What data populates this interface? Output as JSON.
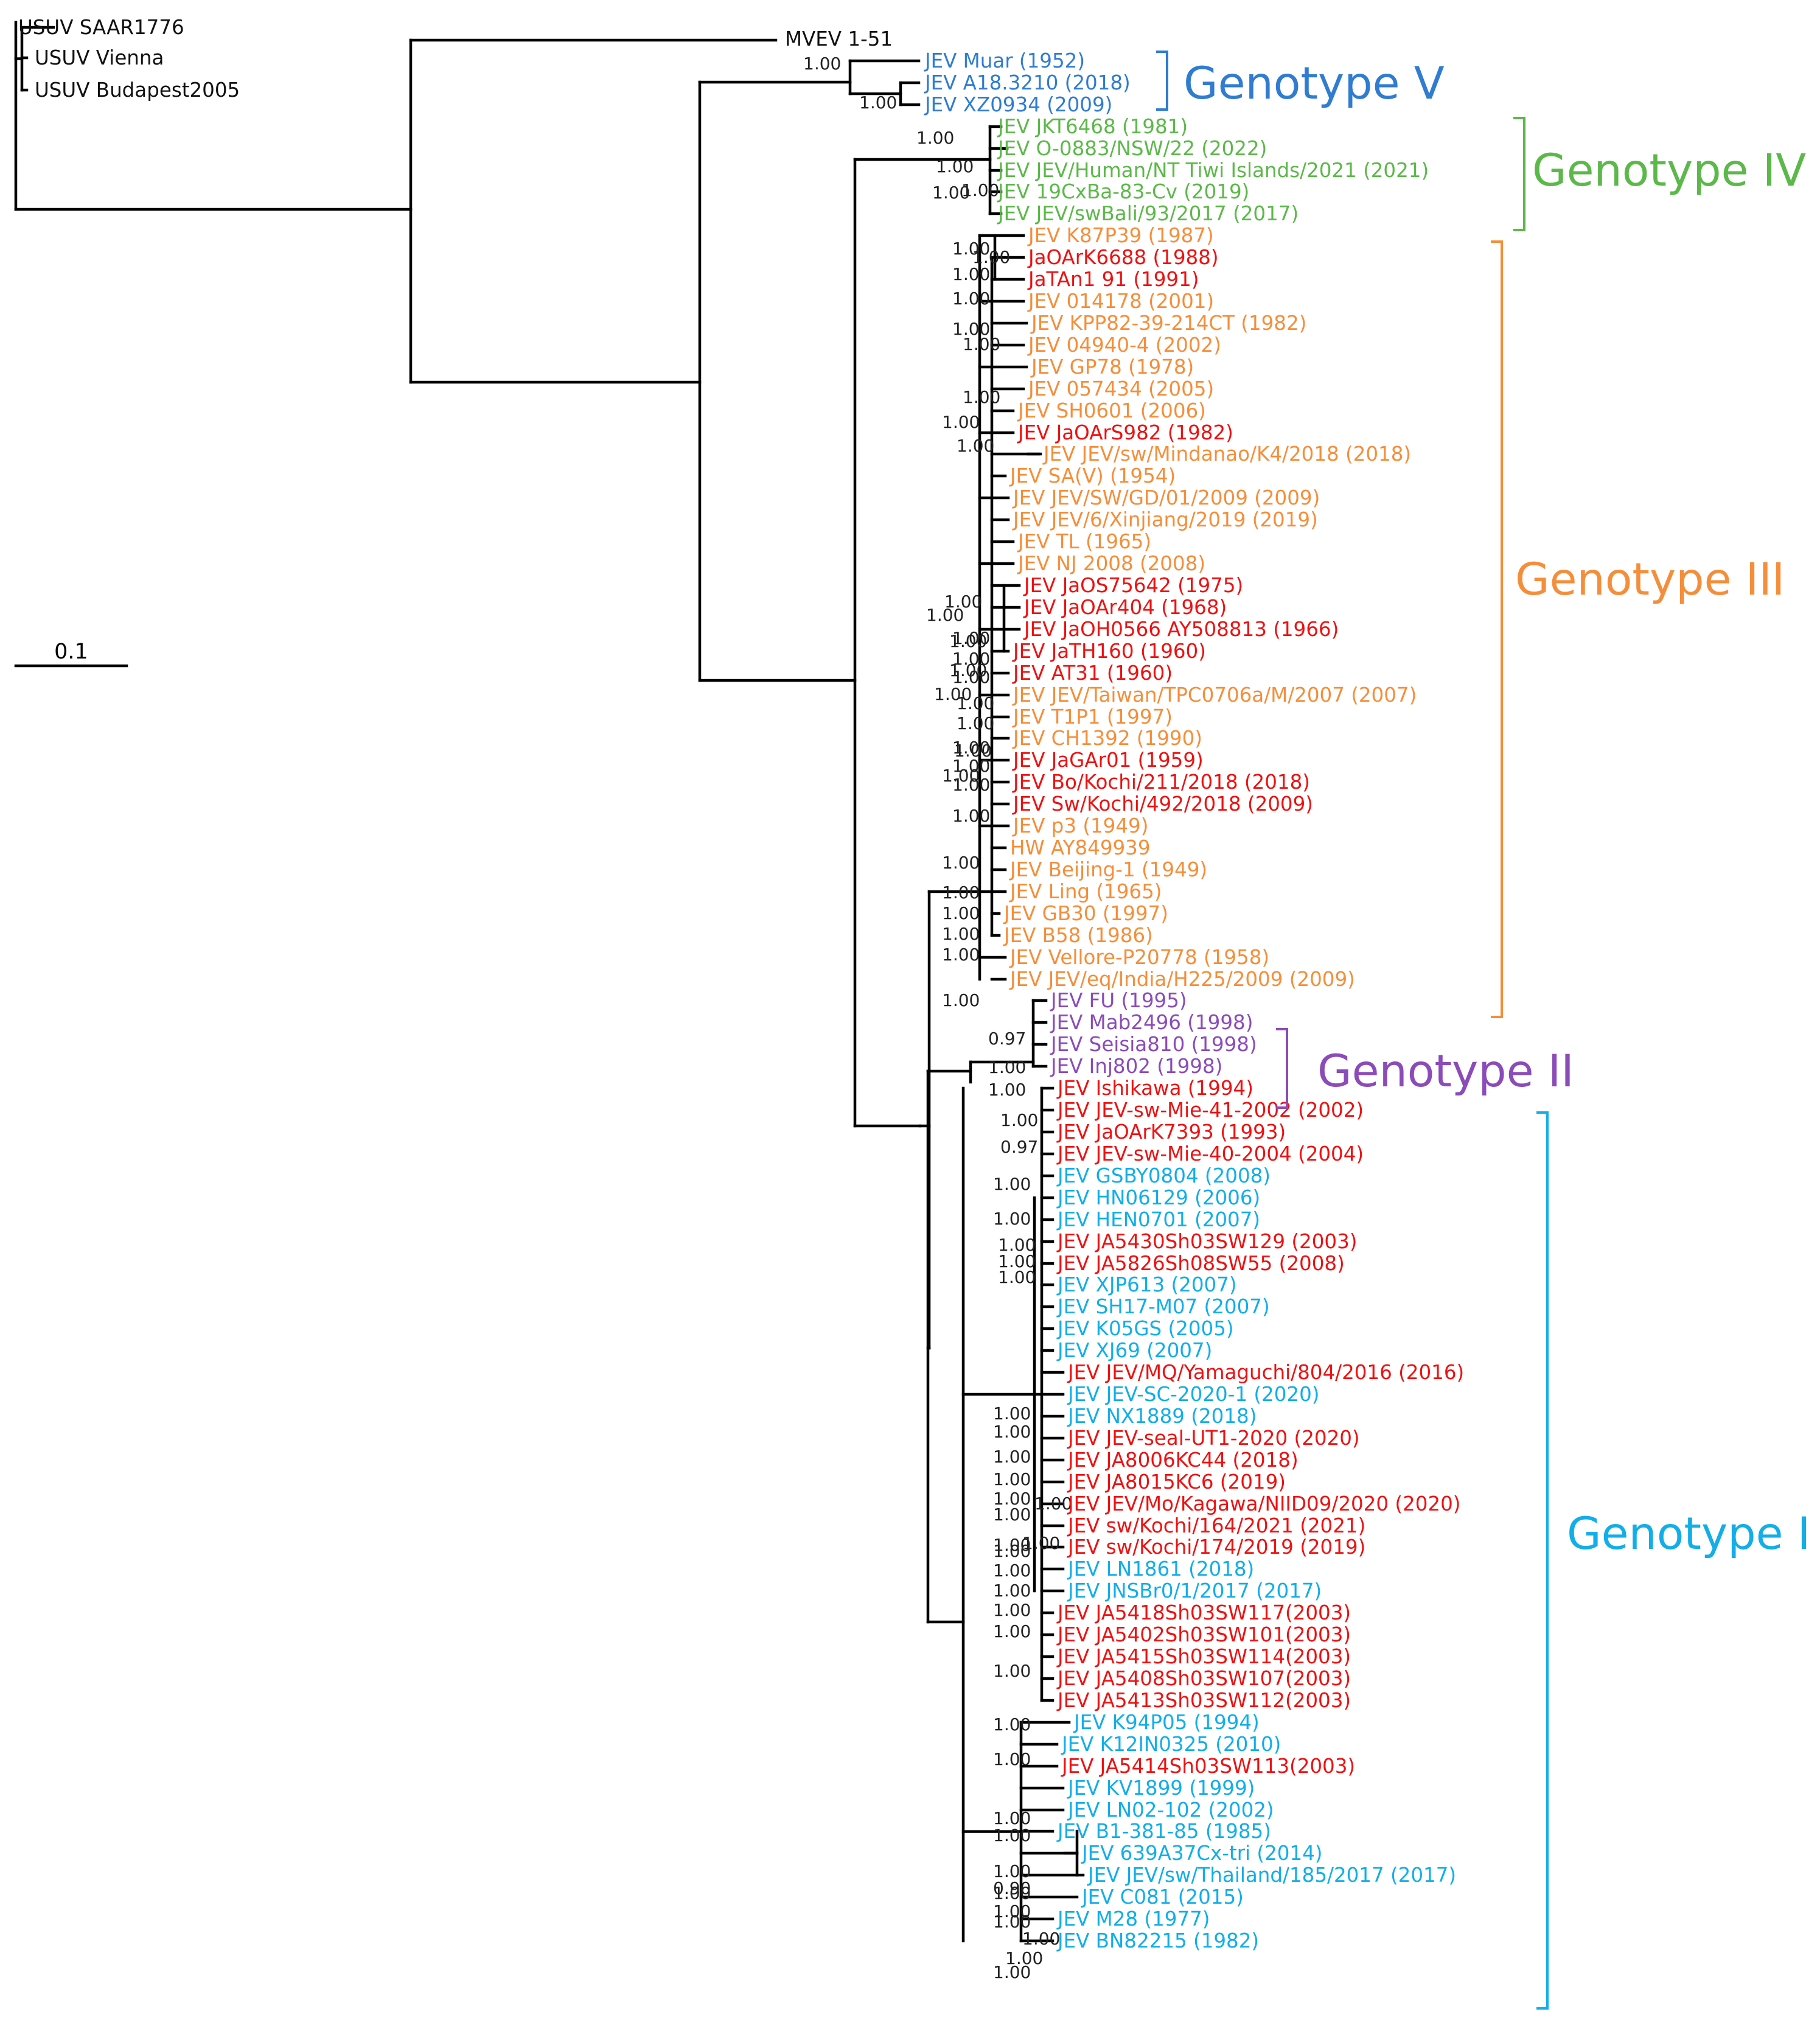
{
  "tree": {
    "scale_bar": {
      "label": "0.1"
    },
    "colors": {
      "black": "#111111",
      "red": "#ee1111",
      "orange": "#f58e3a",
      "green": "#5cb84a",
      "blue": "#2f7cd0",
      "purple": "#8b4bb8",
      "cyan": "#12aee8"
    },
    "outgroup": [
      {
        "label": "USUV SAAR1776"
      },
      {
        "label": "USUV Vienna"
      },
      {
        "label": "USUV Budapest2005"
      },
      {
        "label": "MVEV 1-51"
      }
    ],
    "genotypes": [
      {
        "label": "Genotype V",
        "color": "#2f7cd0"
      },
      {
        "label": "Genotype IV",
        "color": "#5cb84a"
      },
      {
        "label": "Genotype III",
        "color": "#f58e3a"
      },
      {
        "label": "Genotype II",
        "color": "#8b4bb8"
      },
      {
        "label": "Genotype I",
        "color": "#12aee8"
      }
    ],
    "taxa": [
      {
        "label": "USUV SAAR1776",
        "color": "black"
      },
      {
        "label": "USUV Vienna",
        "color": "black"
      },
      {
        "label": "USUV Budapest2005",
        "color": "black"
      },
      {
        "label": "MVEV 1-51",
        "color": "black"
      },
      {
        "label": "JEV Muar (1952)",
        "color": "blue"
      },
      {
        "label": "JEV A18.3210 (2018)",
        "color": "blue"
      },
      {
        "label": "JEV XZ0934 (2009)",
        "color": "blue"
      },
      {
        "label": "JEV JKT6468 (1981)",
        "color": "green"
      },
      {
        "label": "JEV O-0883/NSW/22 (2022)",
        "color": "green"
      },
      {
        "label": "JEV JEV/Human/NT Tiwi Islands/2021 (2021)",
        "color": "green"
      },
      {
        "label": "JEV 19CxBa-83-Cv (2019)",
        "color": "green"
      },
      {
        "label": "JEV JEV/swBali/93/2017 (2017)",
        "color": "green"
      },
      {
        "label": "JEV K87P39 (1987)",
        "color": "orange"
      },
      {
        "label": "JaOArK6688 (1988)",
        "color": "red"
      },
      {
        "label": "JaTAn1 91 (1991)",
        "color": "red"
      },
      {
        "label": "JEV 014178 (2001)",
        "color": "orange"
      },
      {
        "label": "JEV KPP82-39-214CT (1982)",
        "color": "orange"
      },
      {
        "label": "JEV 04940-4 (2002)",
        "color": "orange"
      },
      {
        "label": "JEV GP78 (1978)",
        "color": "orange"
      },
      {
        "label": "JEV 057434 (2005)",
        "color": "orange"
      },
      {
        "label": "JEV SH0601 (2006)",
        "color": "orange"
      },
      {
        "label": "JEV JaOArS982 (1982)",
        "color": "red"
      },
      {
        "label": "JEV JEV/sw/Mindanao/K4/2018 (2018)",
        "color": "orange"
      },
      {
        "label": "JEV SA(V) (1954)",
        "color": "orange"
      },
      {
        "label": "JEV JEV/SW/GD/01/2009 (2009)",
        "color": "orange"
      },
      {
        "label": "JEV JEV/6/Xinjiang/2019 (2019)",
        "color": "orange"
      },
      {
        "label": "JEV TL (1965)",
        "color": "orange"
      },
      {
        "label": "JEV NJ 2008 (2008)",
        "color": "orange"
      },
      {
        "label": "JEV JaOS75642 (1975)",
        "color": "red"
      },
      {
        "label": "JEV JaOAr404 (1968)",
        "color": "red"
      },
      {
        "label": "JEV JaOH0566 AY508813 (1966)",
        "color": "red"
      },
      {
        "label": "JEV JaTH160 (1960)",
        "color": "red"
      },
      {
        "label": "JEV AT31 (1960)",
        "color": "red"
      },
      {
        "label": "JEV JEV/Taiwan/TPC0706a/M/2007 (2007)",
        "color": "orange"
      },
      {
        "label": "JEV T1P1 (1997)",
        "color": "orange"
      },
      {
        "label": "JEV CH1392 (1990)",
        "color": "orange"
      },
      {
        "label": "JEV JaGAr01 (1959)",
        "color": "red"
      },
      {
        "label": "JEV Bo/Kochi/211/2018 (2018)",
        "color": "red"
      },
      {
        "label": "JEV Sw/Kochi/492/2018 (2009)",
        "color": "red"
      },
      {
        "label": "JEV p3 (1949)",
        "color": "orange"
      },
      {
        "label": "HW AY849939",
        "color": "orange"
      },
      {
        "label": "JEV Beijing-1 (1949)",
        "color": "orange"
      },
      {
        "label": "JEV Ling (1965)",
        "color": "orange"
      },
      {
        "label": "JEV GB30 (1997)",
        "color": "orange"
      },
      {
        "label": "JEV B58 (1986)",
        "color": "orange"
      },
      {
        "label": "JEV Vellore-P20778 (1958)",
        "color": "orange"
      },
      {
        "label": "JEV JEV/eq/India/H225/2009 (2009)",
        "color": "orange"
      },
      {
        "label": "JEV FU (1995)",
        "color": "purple"
      },
      {
        "label": "JEV Mab2496 (1998)",
        "color": "purple"
      },
      {
        "label": "JEV Seisia810 (1998)",
        "color": "purple"
      },
      {
        "label": "JEV Inj802 (1998)",
        "color": "purple"
      },
      {
        "label": "JEV Ishikawa (1994)",
        "color": "red"
      },
      {
        "label": "JEV JEV-sw-Mie-41-2002 (2002)",
        "color": "red"
      },
      {
        "label": "JEV JaOArK7393 (1993)",
        "color": "red"
      },
      {
        "label": "JEV JEV-sw-Mie-40-2004 (2004)",
        "color": "red"
      },
      {
        "label": "JEV GSBY0804 (2008)",
        "color": "cyan"
      },
      {
        "label": "JEV HN06129 (2006)",
        "color": "cyan"
      },
      {
        "label": "JEV HEN0701 (2007)",
        "color": "cyan"
      },
      {
        "label": "JEV JA5430Sh03SW129 (2003)",
        "color": "red"
      },
      {
        "label": "JEV JA5826Sh08SW55 (2008)",
        "color": "red"
      },
      {
        "label": "JEV XJP613 (2007)",
        "color": "cyan"
      },
      {
        "label": "JEV SH17-M07 (2007)",
        "color": "cyan"
      },
      {
        "label": "JEV K05GS (2005)",
        "color": "cyan"
      },
      {
        "label": "JEV XJ69 (2007)",
        "color": "cyan"
      },
      {
        "label": "JEV JEV/MQ/Yamaguchi/804/2016 (2016)",
        "color": "red"
      },
      {
        "label": "JEV JEV-SC-2020-1 (2020)",
        "color": "cyan"
      },
      {
        "label": "JEV NX1889 (2018)",
        "color": "cyan"
      },
      {
        "label": "JEV JEV-seal-UT1-2020 (2020)",
        "color": "red"
      },
      {
        "label": "JEV JA8006KC44 (2018)",
        "color": "red"
      },
      {
        "label": "JEV JA8015KC6 (2019)",
        "color": "red"
      },
      {
        "label": "JEV JEV/Mo/Kagawa/NIID09/2020 (2020)",
        "color": "red"
      },
      {
        "label": "JEV sw/Kochi/164/2021 (2021)",
        "color": "red"
      },
      {
        "label": "JEV sw/Kochi/174/2019 (2019)",
        "color": "red"
      },
      {
        "label": "JEV LN1861 (2018)",
        "color": "cyan"
      },
      {
        "label": "JEV JNSBr0/1/2017 (2017)",
        "color": "cyan"
      },
      {
        "label": "JEV JA5418Sh03SW117(2003)",
        "color": "red"
      },
      {
        "label": "JEV JA5402Sh03SW101(2003)",
        "color": "red"
      },
      {
        "label": "JEV JA5415Sh03SW114(2003)",
        "color": "red"
      },
      {
        "label": "JEV JA5408Sh03SW107(2003)",
        "color": "red"
      },
      {
        "label": "JEV JA5413Sh03SW112(2003)",
        "color": "red"
      },
      {
        "label": "JEV K94P05 (1994)",
        "color": "cyan"
      },
      {
        "label": "JEV K12IN0325 (2010)",
        "color": "cyan"
      },
      {
        "label": "JEV JA5414Sh03SW113(2003)",
        "color": "red"
      },
      {
        "label": "JEV KV1899 (1999)",
        "color": "cyan"
      },
      {
        "label": "JEV LN02-102 (2002)",
        "color": "cyan"
      },
      {
        "label": "JEV B1-381-85 (1985)",
        "color": "cyan"
      },
      {
        "label": "JEV 639A37Cx-tri (2014)",
        "color": "cyan"
      },
      {
        "label": "JEV JEV/sw/Thailand/185/2017 (2017)",
        "color": "cyan"
      },
      {
        "label": "JEV C081 (2015)",
        "color": "cyan"
      },
      {
        "label": "JEV M28 (1977)",
        "color": "cyan"
      },
      {
        "label": "JEV BN82215 (1982)",
        "color": "cyan"
      }
    ],
    "supports": [
      "1.00",
      "1.00",
      "1.00",
      "1.00",
      "1.00",
      "1.00",
      "1.00",
      "1.00",
      "1.00",
      "1.00",
      "1.00",
      "1.00",
      "1.00",
      "1.00",
      "1.00",
      "1.00",
      "1.00",
      "1.00",
      "1.00",
      "1.00",
      "1.00",
      "1.00",
      "1.00",
      "1.00",
      "1.00",
      "1.00",
      "1.00",
      "1.00",
      "1.00",
      "1.00",
      "1.00",
      "1.00",
      "1.00",
      "1.00",
      "1.00",
      "1.00",
      "1.00",
      "0.97",
      "1.00",
      "1.00",
      "1.00",
      "0.97",
      "1.00",
      "1.00",
      "1.00",
      "1.00",
      "1.00",
      "1.00",
      "1.00",
      "1.00",
      "1.00",
      "1.00",
      "1.00",
      "1.00",
      "1.00",
      "1.00",
      "1.00",
      "1.00",
      "1.00",
      "1.00",
      "1.00",
      "1.00",
      "1.00",
      "1.00",
      "1.00",
      "1.00",
      "1.00",
      "0.90",
      "1.00",
      "1.00",
      "1.00",
      "1.00",
      "1.00",
      "1.00"
    ]
  }
}
